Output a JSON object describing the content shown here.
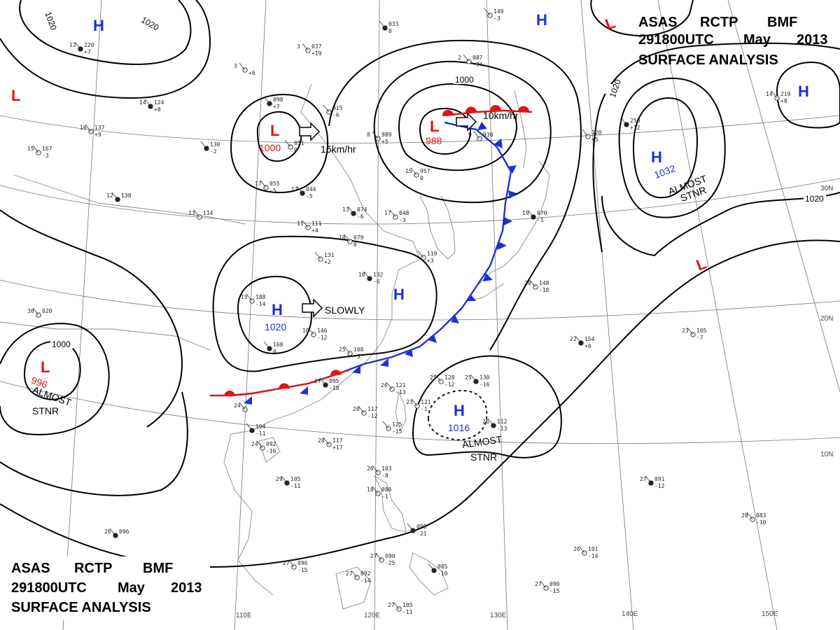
{
  "header_top": {
    "line1": [
      "ASAS",
      "RCTP",
      "BMF"
    ],
    "line2": [
      "291800UTC",
      "May",
      "2013"
    ],
    "line3": "SURFACE ANALYSIS"
  },
  "header_bottom": {
    "line1": [
      "ASAS",
      "RCTP",
      "BMF"
    ],
    "line2": [
      "291800UTC",
      "May",
      "2013"
    ],
    "line3": "SURFACE ANALYSIS"
  },
  "longitude_labels": [
    "110E",
    "120E",
    "130E",
    "140E",
    "150E"
  ],
  "latitude_labels": [
    "30N",
    "20N",
    "10N"
  ],
  "isobar_labels": [
    {
      "id": "iso1",
      "text": "1020"
    },
    {
      "id": "iso2",
      "text": "1020"
    },
    {
      "id": "iso3",
      "text": "1000"
    },
    {
      "id": "iso4",
      "text": "1020"
    },
    {
      "id": "iso5",
      "text": "1020"
    },
    {
      "id": "iso6",
      "text": "1000"
    }
  ],
  "pressure_systems": [
    {
      "id": "h1",
      "type": "H",
      "value": ""
    },
    {
      "id": "h2",
      "type": "H",
      "value": ""
    },
    {
      "id": "h3",
      "type": "H",
      "value": ""
    },
    {
      "id": "h4",
      "type": "H",
      "value": "1032"
    },
    {
      "id": "h5",
      "type": "H",
      "value": "1020"
    },
    {
      "id": "h6",
      "type": "H",
      "value": ""
    },
    {
      "id": "h7",
      "type": "H",
      "value": "1016"
    },
    {
      "id": "l1",
      "type": "L",
      "value": ""
    },
    {
      "id": "l2",
      "type": "L",
      "value": "1000"
    },
    {
      "id": "l3",
      "type": "L",
      "value": "988"
    },
    {
      "id": "l4",
      "type": "L",
      "value": ""
    },
    {
      "id": "l5",
      "type": "L",
      "value": ""
    },
    {
      "id": "l6",
      "type": "L",
      "value": "996"
    }
  ],
  "motion_labels": {
    "low_west": "15km/hr",
    "low_main": "10km/hr",
    "high_china": "SLOWLY"
  },
  "stationary_notes": {
    "pacific_high": [
      "ALMOST",
      "STNR"
    ],
    "west_low": [
      "ALMOST",
      "STNR"
    ],
    "philippine_high": [
      "ALMOST",
      "STNR"
    ]
  },
  "station_plots": [
    {
      "t": "13",
      "p": "220",
      "tend": "+7"
    },
    {
      "t": "3",
      "p": "037",
      "tend": "+19"
    },
    {
      "t": "3",
      "p": "",
      "tend": "+6"
    },
    {
      "t": "",
      "p": "098",
      "tend": "+7"
    },
    {
      "t": "",
      "p": "015",
      "tend": "-6"
    },
    {
      "t": "8",
      "p": "989",
      "tend": "+5"
    },
    {
      "t": "",
      "p": "033",
      "tend": "0"
    },
    {
      "t": "",
      "p": "149",
      "tend": "-3"
    },
    {
      "t": "2",
      "p": "087",
      "tend": "-34"
    },
    {
      "t": "14",
      "p": "124",
      "tend": "+8"
    },
    {
      "t": "16",
      "p": "137",
      "tend": "+9"
    },
    {
      "t": "15",
      "p": "167",
      "tend": "-3"
    },
    {
      "t": "",
      "p": "130",
      "tend": "-2"
    },
    {
      "t": "",
      "p": "051",
      "tend": "0"
    },
    {
      "t": "17",
      "p": "055",
      "tend": "-5"
    },
    {
      "t": "17",
      "p": "044",
      "tend": "-5"
    },
    {
      "t": "15",
      "p": "957",
      "tend": "0"
    },
    {
      "t": "9",
      "p": "930",
      "tend": ""
    },
    {
      "t": "12",
      "p": "138",
      "tend": ""
    },
    {
      "t": "13",
      "p": "114",
      "tend": ""
    },
    {
      "t": "11",
      "p": "111",
      "tend": "+4"
    },
    {
      "t": "13",
      "p": "074",
      "tend": "-6"
    },
    {
      "t": "17",
      "p": "048",
      "tend": "-3"
    },
    {
      "t": "18",
      "p": "079",
      "tend": "0"
    },
    {
      "t": "19",
      "p": "070",
      "tend": "-1"
    },
    {
      "t": "",
      "p": "131",
      "tend": "+2"
    },
    {
      "t": "",
      "p": "119",
      "tend": "+3"
    },
    {
      "t": "18",
      "p": "132",
      "tend": "-6"
    },
    {
      "t": "15",
      "p": "188",
      "tend": "-14"
    },
    {
      "t": "16",
      "p": "146",
      "tend": "-12"
    },
    {
      "t": "",
      "p": "168",
      "tend": "0"
    },
    {
      "t": "20",
      "p": "148",
      "tend": "-18"
    },
    {
      "t": "23",
      "p": "105",
      "tend": "-7"
    },
    {
      "t": "22",
      "p": "154",
      "tend": "+6"
    },
    {
      "t": "30",
      "p": "020",
      "tend": ""
    },
    {
      "t": "25",
      "p": "108",
      "tend": "-5"
    },
    {
      "t": "27",
      "p": "095",
      "tend": "-18"
    },
    {
      "t": "26",
      "p": "121",
      "tend": "-13"
    },
    {
      "t": "25",
      "p": "128",
      "tend": "-12"
    },
    {
      "t": "25",
      "p": "130",
      "tend": "-16"
    },
    {
      "t": "23",
      "p": "121",
      "tend": "-1"
    },
    {
      "t": "24",
      "p": "",
      "tend": ""
    },
    {
      "t": "",
      "p": "104",
      "tend": "-11"
    },
    {
      "t": "20",
      "p": "117",
      "tend": "-12"
    },
    {
      "t": "",
      "p": "125",
      "tend": "-15"
    },
    {
      "t": "26",
      "p": "112",
      "tend": "-13"
    },
    {
      "t": "24",
      "p": "092",
      "tend": "-16"
    },
    {
      "t": "28",
      "p": "117",
      "tend": "+17"
    },
    {
      "t": "29",
      "p": "105",
      "tend": "-11"
    },
    {
      "t": "26",
      "p": "103",
      "tend": "-8"
    },
    {
      "t": "18",
      "p": "080",
      "tend": "-1"
    },
    {
      "t": "",
      "p": "098",
      "tend": "-21"
    },
    {
      "t": "27",
      "p": "096",
      "tend": "-15"
    },
    {
      "t": "27",
      "p": "090",
      "tend": "-25"
    },
    {
      "t": "",
      "p": "085",
      "tend": "-10"
    },
    {
      "t": "27",
      "p": "092",
      "tend": "-14"
    },
    {
      "t": "27",
      "p": "105",
      "tend": "-11"
    },
    {
      "t": "26",
      "p": "096",
      "tend": ""
    },
    {
      "t": "26",
      "p": "101",
      "tend": "-14"
    },
    {
      "t": "27",
      "p": "090",
      "tend": "-15"
    },
    {
      "t": "27",
      "p": "091",
      "tend": "-12"
    },
    {
      "t": "28",
      "p": "083",
      "tend": "-10"
    },
    {
      "t": "14",
      "p": "219",
      "tend": "+8"
    },
    {
      "t": "",
      "p": "250",
      "tend": "+12"
    },
    {
      "t": "",
      "p": "120",
      "tend": "+5"
    }
  ]
}
